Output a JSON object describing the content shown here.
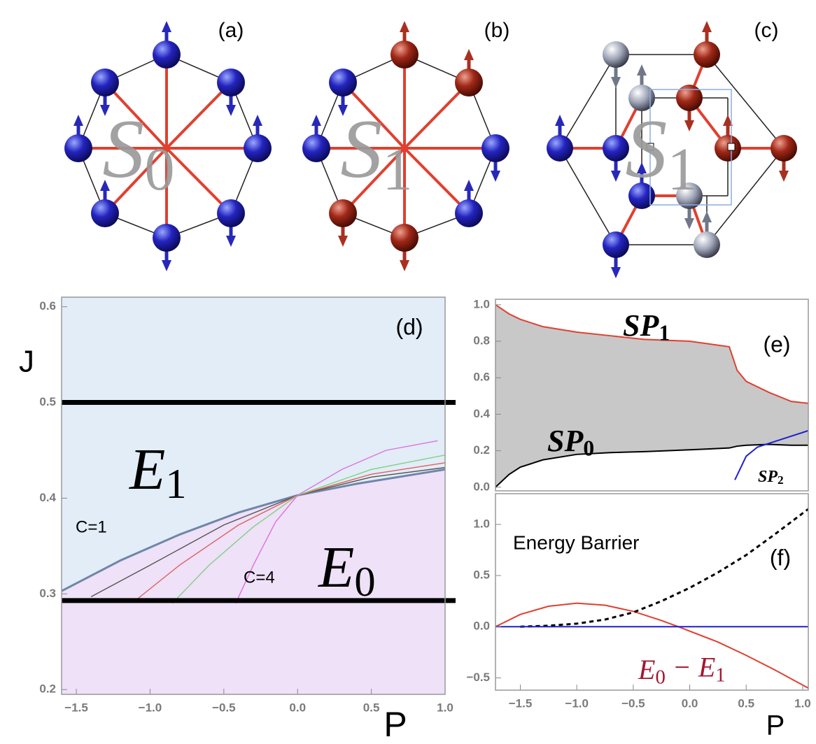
{
  "diagrams": [
    {
      "label": "(a)",
      "symbol": [
        "S",
        "0"
      ]
    },
    {
      "label": "(b)",
      "symbol": [
        "S",
        "1"
      ]
    },
    {
      "label": "(c)",
      "symbol": [
        "S",
        "1"
      ]
    }
  ],
  "chart_data": [
    {
      "type": "phase",
      "label": "(d)",
      "xlabel": "P",
      "ylabel": "J",
      "xlim": [
        -1.6,
        1.0
      ],
      "ylim": [
        0.195,
        0.61
      ],
      "xticks": [
        {
          "value": -1.5,
          "label": "−1.5"
        },
        {
          "value": -1.0,
          "label": "−1.0"
        },
        {
          "value": -0.5,
          "label": "−0.5"
        },
        {
          "value": 0,
          "label": "0.0"
        },
        {
          "value": 0.5,
          "label": "0.5"
        },
        {
          "value": 1.0,
          "label": "1.0"
        }
      ],
      "yticks": [
        0.2,
        0.3,
        0.4,
        0.5,
        0.6
      ],
      "upper_color": "#e2edf8",
      "lower_color": "#eee1f8",
      "hlines": [
        0.5,
        0.293
      ],
      "hline_color": "#000000",
      "phases": [
        [
          "E",
          "1"
        ],
        [
          "E",
          "0"
        ]
      ],
      "annotations": [
        "C=1",
        "C=4"
      ],
      "series": [
        {
          "color": "#6f86a8",
          "x": [
            -1.6,
            -1.2,
            -0.8,
            -0.4,
            0,
            0.4,
            0.8,
            1.0
          ],
          "values": [
            0.303,
            0.335,
            0.362,
            0.385,
            0.403,
            0.415,
            0.425,
            0.43
          ]
        },
        {
          "color": "#555555",
          "x": [
            -1.4,
            -1.0,
            -0.5,
            0,
            0.5,
            1.0
          ],
          "values": [
            0.297,
            0.33,
            0.372,
            0.403,
            0.422,
            0.432
          ]
        },
        {
          "color": "#e06060",
          "x": [
            -1.1,
            -0.8,
            -0.4,
            0,
            0.5,
            1.0
          ],
          "values": [
            0.293,
            0.33,
            0.372,
            0.403,
            0.425,
            0.437
          ]
        },
        {
          "color": "#80d080",
          "x": [
            -0.85,
            -0.6,
            -0.3,
            0,
            0.5,
            1.0
          ],
          "values": [
            0.29,
            0.33,
            0.37,
            0.403,
            0.43,
            0.445
          ]
        },
        {
          "color": "#e070e0",
          "x": [
            -0.42,
            -0.3,
            -0.15,
            0,
            0.3,
            0.6,
            0.95
          ],
          "values": [
            0.29,
            0.33,
            0.375,
            0.403,
            0.43,
            0.45,
            0.46
          ]
        }
      ]
    },
    {
      "type": "band",
      "label": "(e)",
      "xlim": [
        -1.72,
        1.05
      ],
      "ylim": [
        -0.02,
        1.03
      ],
      "yticks": [
        {
          "value": 0,
          "label": "0.0"
        },
        0.2,
        0.4,
        0.6,
        0.8,
        {
          "value": 1.0,
          "label": "1.0"
        }
      ],
      "fill_color": "#c8c8c8",
      "series": [
        {
          "label": [
            "SP",
            "1"
          ],
          "color": "#e04030",
          "x": [
            -1.72,
            -1.6,
            -1.5,
            -1.3,
            -1.0,
            -0.7,
            -0.4,
            0,
            0.35,
            0.42,
            0.5,
            0.7,
            0.9,
            1.05
          ],
          "values": [
            1.0,
            0.95,
            0.92,
            0.88,
            0.85,
            0.83,
            0.81,
            0.8,
            0.77,
            0.64,
            0.58,
            0.52,
            0.47,
            0.46
          ]
        },
        {
          "label": [
            "SP",
            "0"
          ],
          "color": "#000000",
          "x": [
            -1.72,
            -1.6,
            -1.5,
            -1.3,
            -1.0,
            -0.7,
            -0.4,
            0,
            0.35,
            0.42,
            0.5,
            0.7,
            0.9,
            1.05
          ],
          "values": [
            0,
            0.07,
            0.11,
            0.15,
            0.18,
            0.19,
            0.195,
            0.205,
            0.215,
            0.225,
            0.23,
            0.235,
            0.23,
            0.23
          ]
        },
        {
          "label": [
            "SP",
            "2"
          ],
          "color": "#2020d0",
          "x": [
            0.4,
            0.5,
            0.6,
            0.8,
            1.0,
            1.05
          ],
          "values": [
            0.04,
            0.17,
            0.22,
            0.26,
            0.3,
            0.31
          ]
        }
      ]
    },
    {
      "type": "line",
      "label": "(f)",
      "xlabel": "P",
      "annotation": "Energy Barrier",
      "xlim": [
        -1.72,
        1.05
      ],
      "ylim": [
        -0.62,
        1.3
      ],
      "xticks": [
        {
          "value": -1.5,
          "label": "−1.5"
        },
        {
          "value": -1.0,
          "label": "−1.0"
        },
        {
          "value": -0.5,
          "label": "−0.5"
        },
        {
          "value": 0,
          "label": "0.0"
        },
        {
          "value": 0.5,
          "label": "0.5"
        },
        {
          "value": 1.0,
          "label": "1.0"
        }
      ],
      "yticks": [
        {
          "value": -0.5,
          "label": "−0.5"
        },
        {
          "value": 0,
          "label": "0.0"
        },
        {
          "value": 0.5,
          "label": "0.5"
        },
        {
          "value": 1.0,
          "label": "1.0"
        }
      ],
      "series": [
        {
          "label": [
            "E",
            "0",
            " − E",
            "1"
          ],
          "label_color": "#a01830",
          "color": "#e04030",
          "dash": false,
          "x": [
            -1.72,
            -1.5,
            -1.25,
            -1.0,
            -0.75,
            -0.5,
            -0.25,
            -0.1,
            0.25,
            0.5,
            0.75,
            1.05
          ],
          "values": [
            0,
            0.12,
            0.2,
            0.23,
            0.21,
            0.15,
            0.06,
            0,
            -0.15,
            -0.28,
            -0.42,
            -0.6
          ]
        },
        {
          "color": "#000000",
          "dash": true,
          "x": [
            -1.5,
            -1.25,
            -1.0,
            -0.75,
            -0.5,
            -0.25,
            0,
            0.25,
            0.5,
            0.75,
            1.05
          ],
          "values": [
            0,
            0.01,
            0.03,
            0.07,
            0.14,
            0.25,
            0.38,
            0.53,
            0.7,
            0.9,
            1.15
          ]
        },
        {
          "color": "#2020d0",
          "dash": false,
          "x": [
            -1.72,
            1.05
          ],
          "values": [
            0,
            0
          ]
        }
      ]
    }
  ]
}
